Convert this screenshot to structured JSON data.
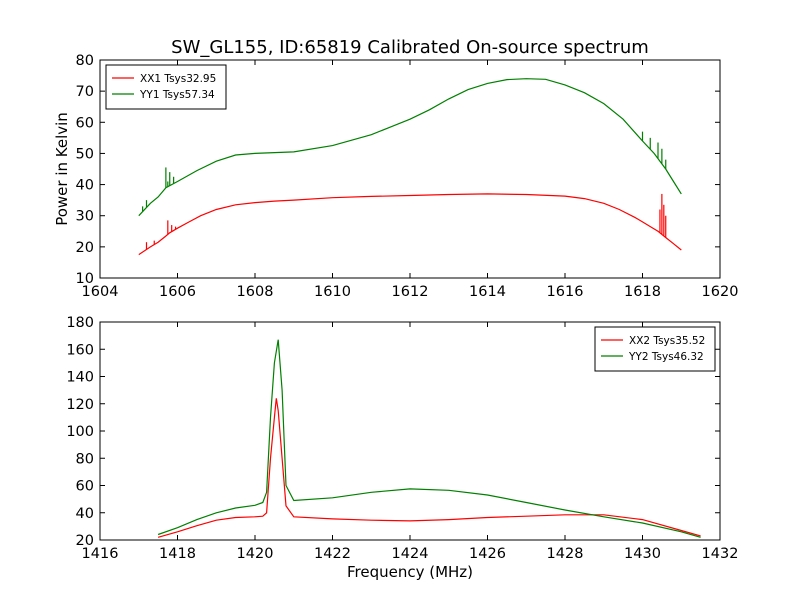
{
  "figure": {
    "title": "SW_GL155, ID:65819 Calibrated On-source spectrum",
    "xlabel": "Frequency (MHz)",
    "ylabel": "Power in Kelvin"
  },
  "chart_data": [
    {
      "type": "line",
      "title": "SW_GL155, ID:65819 Calibrated On-source spectrum",
      "xlabel": "",
      "ylabel": "Power in Kelvin",
      "xlim": [
        1604,
        1620
      ],
      "ylim": [
        10,
        80
      ],
      "xticks": [
        1604,
        1606,
        1608,
        1610,
        1612,
        1614,
        1616,
        1618,
        1620
      ],
      "yticks": [
        10,
        20,
        30,
        40,
        50,
        60,
        70,
        80
      ],
      "grid": false,
      "legend_position": "top-left",
      "series": [
        {
          "name": "XX1 Tsys32.95",
          "color": "#ff0000",
          "x": [
            1605.0,
            1605.3,
            1605.5,
            1605.7,
            1605.8,
            1606.0,
            1606.3,
            1606.6,
            1607.0,
            1607.5,
            1608.0,
            1608.5,
            1609.0,
            1610.0,
            1611.0,
            1612.0,
            1613.0,
            1614.0,
            1615.0,
            1616.0,
            1616.5,
            1617.0,
            1617.4,
            1617.8,
            1618.0,
            1618.2,
            1618.4,
            1618.6,
            1618.8,
            1619.0
          ],
          "y": [
            17.5,
            20.0,
            21.5,
            23.5,
            24.5,
            26.0,
            28.0,
            30.0,
            32.0,
            33.5,
            34.2,
            34.7,
            35.0,
            35.8,
            36.2,
            36.5,
            36.8,
            37.0,
            36.8,
            36.3,
            35.5,
            34.0,
            32.0,
            29.5,
            28.0,
            26.5,
            25.0,
            23.0,
            21.0,
            19.0
          ],
          "spikes": [
            [
              1605.2,
              21.5
            ],
            [
              1605.4,
              22.0
            ],
            [
              1605.75,
              28.5
            ],
            [
              1605.85,
              27.0
            ],
            [
              1605.95,
              26.5
            ],
            [
              1618.45,
              32.0
            ],
            [
              1618.5,
              37.0
            ],
            [
              1618.55,
              33.5
            ],
            [
              1618.6,
              30.0
            ]
          ]
        },
        {
          "name": "YY1 Tsys57.34",
          "color": "#008000",
          "x": [
            1605.0,
            1605.3,
            1605.5,
            1605.7,
            1606.0,
            1606.5,
            1607.0,
            1607.5,
            1608.0,
            1609.0,
            1610.0,
            1611.0,
            1612.0,
            1612.5,
            1613.0,
            1613.5,
            1614.0,
            1614.5,
            1615.0,
            1615.5,
            1616.0,
            1616.5,
            1617.0,
            1617.5,
            1618.0,
            1618.3,
            1618.6,
            1618.8,
            1619.0
          ],
          "y": [
            30.0,
            34.0,
            36.0,
            39.0,
            41.0,
            44.5,
            47.5,
            49.5,
            50.0,
            50.5,
            52.5,
            56.0,
            61.0,
            64.0,
            67.5,
            70.5,
            72.5,
            73.7,
            74.0,
            73.8,
            72.0,
            69.5,
            66.0,
            61.0,
            54.0,
            50.0,
            45.0,
            41.0,
            37.0
          ],
          "spikes": [
            [
              1605.1,
              33.0
            ],
            [
              1605.2,
              35.0
            ],
            [
              1605.7,
              45.5
            ],
            [
              1605.75,
              41.0
            ],
            [
              1605.8,
              44.0
            ],
            [
              1605.9,
              42.5
            ],
            [
              1618.0,
              57.0
            ],
            [
              1618.2,
              55.0
            ],
            [
              1618.4,
              53.5
            ],
            [
              1618.5,
              51.5
            ],
            [
              1618.6,
              48.0
            ]
          ]
        }
      ]
    },
    {
      "type": "line",
      "title": "",
      "xlabel": "Frequency (MHz)",
      "ylabel": "",
      "xlim": [
        1416,
        1432
      ],
      "ylim": [
        20,
        180
      ],
      "xticks": [
        1416,
        1418,
        1420,
        1422,
        1424,
        1426,
        1428,
        1430,
        1432
      ],
      "yticks": [
        20,
        40,
        60,
        80,
        100,
        120,
        140,
        160,
        180
      ],
      "grid": false,
      "legend_position": "top-right",
      "series": [
        {
          "name": "XX2 Tsys35.52",
          "color": "#ff0000",
          "x": [
            1417.5,
            1418.0,
            1418.5,
            1419.0,
            1419.5,
            1420.0,
            1420.2,
            1420.3,
            1420.4,
            1420.5,
            1420.55,
            1420.6,
            1420.7,
            1420.8,
            1421.0,
            1422.0,
            1423.0,
            1424.0,
            1425.0,
            1426.0,
            1427.0,
            1428.0,
            1429.0,
            1430.0,
            1431.0,
            1431.5
          ],
          "y": [
            22.0,
            26.0,
            30.5,
            34.5,
            36.5,
            37.0,
            37.5,
            40.0,
            80.0,
            110.0,
            124.0,
            115.0,
            80.0,
            45.0,
            37.0,
            35.5,
            34.5,
            34.0,
            35.0,
            36.5,
            37.5,
            38.5,
            38.5,
            35.0,
            27.0,
            23.0
          ]
        },
        {
          "name": "YY2 Tsys46.32",
          "color": "#008000",
          "x": [
            1417.5,
            1418.0,
            1418.5,
            1419.0,
            1419.5,
            1420.0,
            1420.2,
            1420.3,
            1420.4,
            1420.5,
            1420.6,
            1420.7,
            1420.8,
            1421.0,
            1422.0,
            1423.0,
            1424.0,
            1425.0,
            1426.0,
            1427.0,
            1428.0,
            1429.0,
            1430.0,
            1431.0,
            1431.5
          ],
          "y": [
            24.0,
            29.0,
            35.0,
            40.0,
            43.5,
            45.5,
            47.5,
            55.0,
            110.0,
            150.0,
            167.0,
            130.0,
            60.0,
            49.0,
            51.0,
            55.0,
            57.5,
            56.5,
            53.0,
            47.5,
            42.0,
            37.0,
            32.5,
            26.0,
            22.0
          ]
        }
      ]
    }
  ]
}
